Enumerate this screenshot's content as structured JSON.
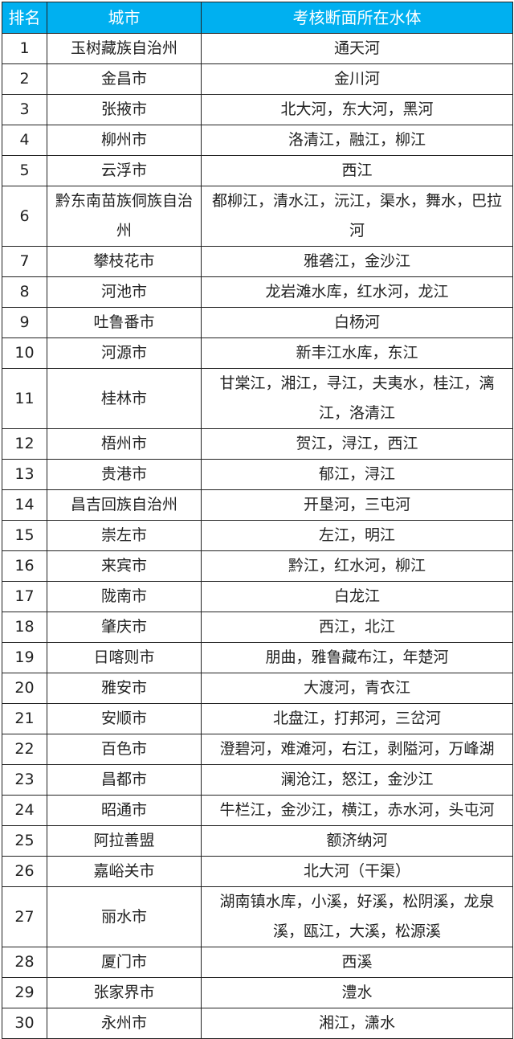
{
  "header": {
    "rank": "排名",
    "city": "城市",
    "water": "考核断面所在水体",
    "color": "#00b0f0"
  },
  "rows": [
    {
      "rank": "1",
      "city": "玉树藏族自治州",
      "water": "通天河"
    },
    {
      "rank": "2",
      "city": "金昌市",
      "water": "金川河"
    },
    {
      "rank": "3",
      "city": "张掖市",
      "water": "北大河，东大河，黑河"
    },
    {
      "rank": "4",
      "city": "柳州市",
      "water": "洛清江，融江，柳江"
    },
    {
      "rank": "5",
      "city": "云浮市",
      "water": "西江"
    },
    {
      "rank": "6",
      "city": "黔东南苗族侗族自治州",
      "water": "都柳江，清水江，沅江，渠水，舞水，巴拉河"
    },
    {
      "rank": "7",
      "city": "攀枝花市",
      "water": "雅砻江，金沙江"
    },
    {
      "rank": "8",
      "city": "河池市",
      "water": "龙岩滩水库，红水河，龙江"
    },
    {
      "rank": "9",
      "city": "吐鲁番市",
      "water": "白杨河"
    },
    {
      "rank": "10",
      "city": "河源市",
      "water": "新丰江水库，东江"
    },
    {
      "rank": "11",
      "city": "桂林市",
      "water": "甘棠江，湘江，寻江，夫夷水，桂江，漓江，洛清江"
    },
    {
      "rank": "12",
      "city": "梧州市",
      "water": "贺江，浔江，西江"
    },
    {
      "rank": "13",
      "city": "贵港市",
      "water": "郁江，浔江"
    },
    {
      "rank": "14",
      "city": "昌吉回族自治州",
      "water": "开垦河，三屯河"
    },
    {
      "rank": "15",
      "city": "崇左市",
      "water": "左江，明江"
    },
    {
      "rank": "16",
      "city": "来宾市",
      "water": "黔江，红水河，柳江"
    },
    {
      "rank": "17",
      "city": "陇南市",
      "water": "白龙江"
    },
    {
      "rank": "18",
      "city": "肇庆市",
      "water": "西江，北江"
    },
    {
      "rank": "19",
      "city": "日喀则市",
      "water": "朋曲，雅鲁藏布江，年楚河"
    },
    {
      "rank": "20",
      "city": "雅安市",
      "water": "大渡河，青衣江"
    },
    {
      "rank": "21",
      "city": "安顺市",
      "water": "北盘江，打邦河，三岔河"
    },
    {
      "rank": "22",
      "city": "百色市",
      "water": "澄碧河，难滩河，右江，剥隘河，万峰湖"
    },
    {
      "rank": "23",
      "city": "昌都市",
      "water": "澜沧江，怒江，金沙江"
    },
    {
      "rank": "24",
      "city": "昭通市",
      "water": "牛栏江，金沙江，横江，赤水河，头屯河"
    },
    {
      "rank": "25",
      "city": "阿拉善盟",
      "water": "额济纳河"
    },
    {
      "rank": "26",
      "city": "嘉峪关市",
      "water": "北大河（干渠）"
    },
    {
      "rank": "27",
      "city": "丽水市",
      "water": "湖南镇水库，小溪，好溪，松阴溪，龙泉溪，瓯江，大溪，松源溪"
    },
    {
      "rank": "28",
      "city": "厦门市",
      "water": "西溪"
    },
    {
      "rank": "29",
      "city": "张家界市",
      "water": "澧水"
    },
    {
      "rank": "30",
      "city": "永州市",
      "water": "湘江，潇水"
    }
  ]
}
